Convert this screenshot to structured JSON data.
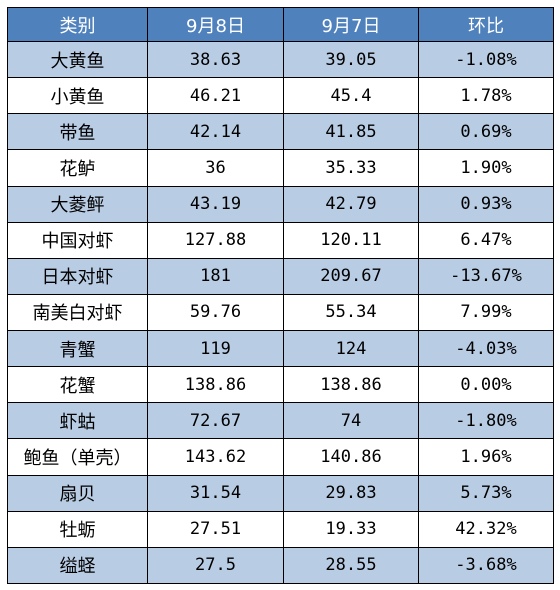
{
  "table": {
    "headers": [
      "类别",
      "9月8日",
      "9月7日",
      "环比"
    ],
    "rows": [
      [
        "大黄鱼",
        "38.63",
        "39.05",
        "-1.08%"
      ],
      [
        "小黄鱼",
        "46.21",
        "45.4",
        "1.78%"
      ],
      [
        "带鱼",
        "42.14",
        "41.85",
        "0.69%"
      ],
      [
        "花鲈",
        "36",
        "35.33",
        "1.90%"
      ],
      [
        "大菱鲆",
        "43.19",
        "42.79",
        "0.93%"
      ],
      [
        "中国对虾",
        "127.88",
        "120.11",
        "6.47%"
      ],
      [
        "日本对虾",
        "181",
        "209.67",
        "-13.67%"
      ],
      [
        "南美白对虾",
        "59.76",
        "55.34",
        "7.99%"
      ],
      [
        "青蟹",
        "119",
        "124",
        "-4.03%"
      ],
      [
        "花蟹",
        "138.86",
        "138.86",
        "0.00%"
      ],
      [
        "虾蛄",
        "72.67",
        "74",
        "-1.80%"
      ],
      [
        "鲍鱼（单壳）",
        "143.62",
        "140.86",
        "1.96%"
      ],
      [
        "扇贝",
        "31.54",
        "29.83",
        "5.73%"
      ],
      [
        "牡蛎",
        "27.51",
        "19.33",
        "42.32%"
      ],
      [
        "缢蛏",
        "27.5",
        "28.55",
        "-3.68%"
      ]
    ]
  },
  "colors": {
    "header_bg": "#4f81bd",
    "header_text": "#ffffff",
    "band_odd": "#b8cce4",
    "band_even": "#ffffff",
    "border": "#000000"
  }
}
